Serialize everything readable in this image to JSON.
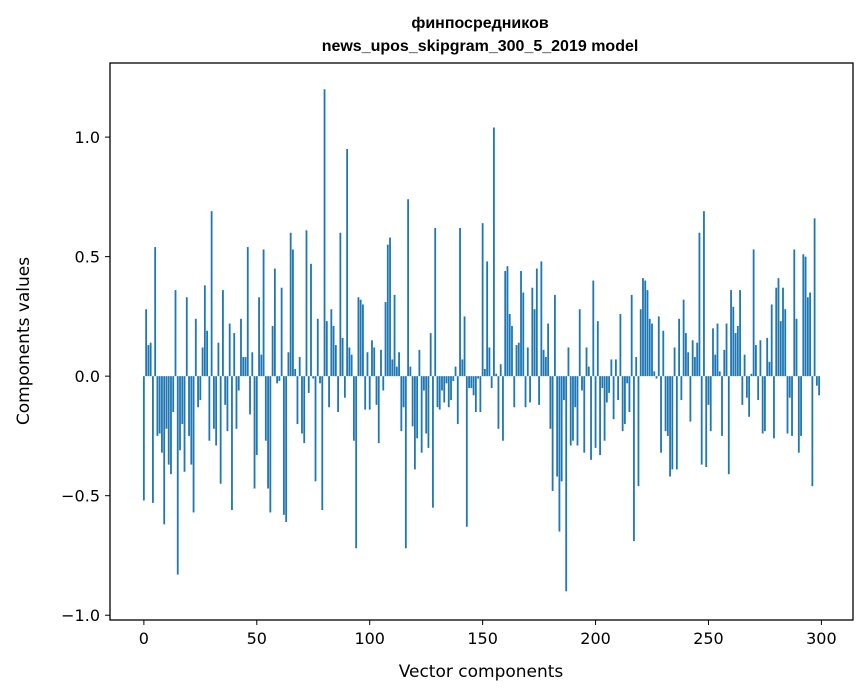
{
  "chart_data": {
    "type": "bar",
    "title": "финпосредников",
    "subtitle": "news_upos_skipgram_300_5_2019 model",
    "xlabel": "Vector components",
    "ylabel": "Components values",
    "xlim": [
      -15,
      314
    ],
    "ylim": [
      -1.02,
      1.31
    ],
    "xticks": [
      0,
      50,
      100,
      150,
      200,
      250,
      300
    ],
    "yticks": [
      -1.0,
      -0.5,
      0.0,
      0.5,
      1.0
    ],
    "ytick_labels": [
      "−1.0",
      "−0.5",
      "0.0",
      "0.5",
      "1.0"
    ],
    "bar_color": "#1f77b4",
    "grid": false,
    "values": [
      -0.52,
      0.28,
      0.13,
      0.14,
      -0.53,
      0.54,
      -0.25,
      -0.24,
      -0.32,
      -0.62,
      -0.22,
      -0.37,
      -0.41,
      -0.15,
      0.36,
      -0.83,
      -0.31,
      -0.2,
      -0.4,
      0.33,
      -0.25,
      -0.37,
      -0.57,
      0.24,
      -0.13,
      -0.1,
      0.12,
      0.38,
      0.19,
      -0.27,
      0.69,
      -0.22,
      -0.29,
      0.14,
      -0.45,
      0.36,
      -0.12,
      -0.23,
      0.22,
      -0.56,
      0.18,
      -0.22,
      -0.06,
      0.24,
      0.08,
      0.08,
      0.54,
      -0.16,
      0.1,
      -0.47,
      -0.33,
      0.33,
      0.09,
      0.53,
      -0.27,
      -0.47,
      -0.57,
      0.21,
      0.45,
      -0.03,
      -0.02,
      0.37,
      -0.58,
      -0.61,
      0.1,
      0.6,
      0.53,
      0.03,
      -0.2,
      0.08,
      -0.24,
      -0.28,
      0.61,
      -0.07,
      0.47,
      -0.01,
      -0.44,
      0.24,
      -0.03,
      -0.56,
      1.2,
      0.23,
      -0.13,
      0.28,
      0.21,
      0.13,
      -0.15,
      0.6,
      0.16,
      -0.09,
      0.95,
      0.12,
      0.09,
      -0.27,
      -0.72,
      0.33,
      0.32,
      0.3,
      -0.14,
      0.1,
      -0.14,
      0.15,
      0.12,
      -0.12,
      -0.28,
      0.11,
      -0.06,
      0.31,
      0.55,
      0.58,
      0.07,
      0.34,
      0.04,
      0.1,
      -0.23,
      -0.13,
      -0.72,
      0.74,
      0.04,
      -0.21,
      -0.39,
      -0.26,
      0.11,
      -0.32,
      -0.06,
      -0.24,
      -0.3,
      0.18,
      -0.55,
      0.62,
      -0.13,
      -0.14,
      -0.06,
      -0.11,
      -0.03,
      -0.13,
      -0.1,
      -0.02,
      0.04,
      -0.2,
      0.62,
      0.07,
      0.25,
      -0.63,
      -0.05,
      -0.05,
      -0.08,
      -0.15,
      -0.01,
      -0.15,
      0.64,
      0.03,
      0.48,
      0.12,
      -0.05,
      1.04,
      0.01,
      -0.22,
      0.05,
      -0.27,
      0.44,
      0.46,
      0.26,
      0.21,
      -0.13,
      0.13,
      0.14,
      0.44,
      0.35,
      -0.13,
      0.12,
      -0.11,
      0.37,
      0.28,
      0.45,
      -0.12,
      0.48,
      0.11,
      0.08,
      0.22,
      -0.22,
      -0.48,
      0.34,
      -0.42,
      -0.65,
      -0.44,
      -0.1,
      -0.9,
      0.12,
      -0.29,
      -0.27,
      -0.13,
      -0.29,
      0.28,
      -0.06,
      -0.32,
      0.12,
      0.04,
      -0.35,
      0.4,
      -0.3,
      0.23,
      -0.33,
      -0.05,
      -0.27,
      -0.11,
      -0.07,
      0.07,
      -0.18,
      0.07,
      -0.1,
      0.26,
      -0.23,
      -0.2,
      -0.03,
      -0.15,
      0.34,
      -0.69,
      0.08,
      -0.46,
      0.28,
      0.41,
      0.4,
      0.36,
      0.24,
      0.22,
      0.02,
      -0.01,
      0.25,
      -0.32,
      0.19,
      -0.23,
      -0.25,
      -0.42,
      -0.39,
      0.12,
      -0.39,
      0.24,
      -0.1,
      0.32,
      0.18,
      0.1,
      -0.19,
      0.15,
      0.08,
      0.14,
      0.6,
      -0.37,
      0.69,
      -0.38,
      -0.12,
      -0.23,
      0.2,
      0.09,
      0.22,
      0.02,
      -0.25,
      0.11,
      0.22,
      -0.41,
      0.36,
      0.29,
      0.18,
      0.21,
      0.36,
      -0.12,
      0.09,
      -0.09,
      -0.17,
      0.01,
      0.53,
      0.13,
      -0.1,
      0.15,
      -0.24,
      -0.23,
      0.16,
      0.06,
      0.3,
      -0.26,
      0.37,
      0.41,
      0.23,
      0.37,
      0.28,
      -0.24,
      -0.09,
      -0.25,
      0.53,
      0.24,
      -0.32,
      -0.25,
      0.51,
      0.5,
      0.33,
      0.35,
      -0.46,
      0.66,
      -0.04,
      -0.08
    ]
  }
}
